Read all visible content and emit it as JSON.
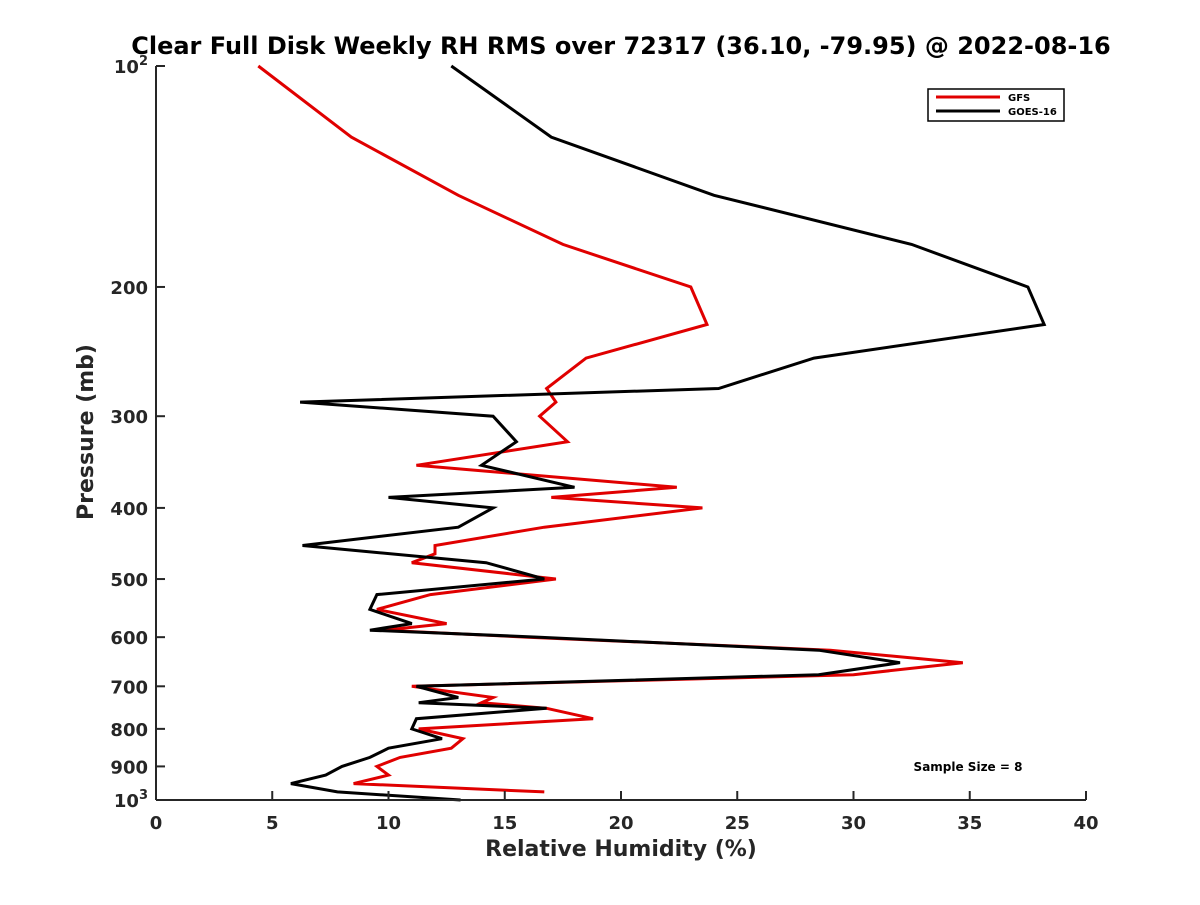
{
  "chart_data": {
    "type": "line",
    "title": "Clear Full Disk Weekly RH RMS over 72317 (36.10, -79.95) @ 2022-08-16",
    "xlabel": "Relative Humidity (%)",
    "ylabel": "Pressure (mb)",
    "xlim": [
      0,
      40
    ],
    "ylim": [
      100,
      1000
    ],
    "yscale": "log",
    "y_reversed": true,
    "x_ticks": [
      0,
      5,
      10,
      15,
      20,
      25,
      30,
      35,
      40
    ],
    "x_tick_labels": [
      "0",
      "5",
      "10",
      "15",
      "20",
      "25",
      "30",
      "35",
      "40"
    ],
    "y_ticks": [
      100,
      200,
      300,
      400,
      500,
      600,
      700,
      800,
      900,
      1000
    ],
    "y_tick_labels": [
      {
        "base": "10",
        "sup": "2"
      },
      {
        "base": "200",
        "sup": ""
      },
      {
        "base": "300",
        "sup": ""
      },
      {
        "base": "400",
        "sup": ""
      },
      {
        "base": "500",
        "sup": ""
      },
      {
        "base": "600",
        "sup": ""
      },
      {
        "base": "700",
        "sup": ""
      },
      {
        "base": "800",
        "sup": ""
      },
      {
        "base": "900",
        "sup": ""
      },
      {
        "base": "10",
        "sup": "3"
      }
    ],
    "grid": false,
    "legend_position": "top-right",
    "annotation": "Sample Size = 8",
    "series": [
      {
        "name": "GFS",
        "color": "#e00000",
        "points": [
          [
            4.4,
            100
          ],
          [
            8.4,
            125
          ],
          [
            13.0,
            150
          ],
          [
            17.5,
            175
          ],
          [
            23.0,
            200
          ],
          [
            23.7,
            225
          ],
          [
            18.5,
            250
          ],
          [
            16.8,
            275
          ],
          [
            17.2,
            287
          ],
          [
            16.5,
            300
          ],
          [
            17.7,
            325
          ],
          [
            11.2,
            350
          ],
          [
            22.4,
            375
          ],
          [
            17.0,
            387
          ],
          [
            23.5,
            400
          ],
          [
            16.7,
            425
          ],
          [
            12.0,
            450
          ],
          [
            12.0,
            462
          ],
          [
            11.0,
            475
          ],
          [
            17.2,
            500
          ],
          [
            11.8,
            525
          ],
          [
            9.5,
            550
          ],
          [
            12.5,
            575
          ],
          [
            9.8,
            587
          ],
          [
            16.0,
            600
          ],
          [
            29.0,
            625
          ],
          [
            34.7,
            650
          ],
          [
            30.0,
            675
          ],
          [
            11.0,
            700
          ],
          [
            14.5,
            725
          ],
          [
            14.0,
            737
          ],
          [
            16.8,
            750
          ],
          [
            18.8,
            775
          ],
          [
            11.3,
            800
          ],
          [
            13.2,
            825
          ],
          [
            12.7,
            850
          ],
          [
            10.5,
            875
          ],
          [
            9.5,
            900
          ],
          [
            10.0,
            925
          ],
          [
            8.5,
            950
          ],
          [
            16.7,
            975
          ]
        ]
      },
      {
        "name": "GOES-16",
        "color": "#000000",
        "points": [
          [
            12.7,
            100
          ],
          [
            17.0,
            125
          ],
          [
            24.0,
            150
          ],
          [
            32.5,
            175
          ],
          [
            37.5,
            200
          ],
          [
            38.2,
            225
          ],
          [
            28.3,
            250
          ],
          [
            24.2,
            275
          ],
          [
            6.2,
            287
          ],
          [
            14.5,
            300
          ],
          [
            15.5,
            325
          ],
          [
            14.0,
            350
          ],
          [
            18.0,
            375
          ],
          [
            10.0,
            387
          ],
          [
            14.5,
            400
          ],
          [
            13.0,
            425
          ],
          [
            6.3,
            450
          ],
          [
            14.2,
            475
          ],
          [
            16.7,
            500
          ],
          [
            9.5,
            525
          ],
          [
            9.2,
            550
          ],
          [
            11.0,
            575
          ],
          [
            9.2,
            587
          ],
          [
            16.5,
            600
          ],
          [
            28.5,
            625
          ],
          [
            32.0,
            650
          ],
          [
            28.5,
            675
          ],
          [
            11.2,
            700
          ],
          [
            13.0,
            725
          ],
          [
            11.3,
            737
          ],
          [
            16.8,
            750
          ],
          [
            11.2,
            775
          ],
          [
            11.0,
            800
          ],
          [
            12.3,
            825
          ],
          [
            10.0,
            850
          ],
          [
            9.2,
            875
          ],
          [
            8.0,
            900
          ],
          [
            7.3,
            925
          ],
          [
            5.8,
            950
          ],
          [
            7.8,
            975
          ],
          [
            13.1,
            1000
          ]
        ]
      }
    ]
  }
}
